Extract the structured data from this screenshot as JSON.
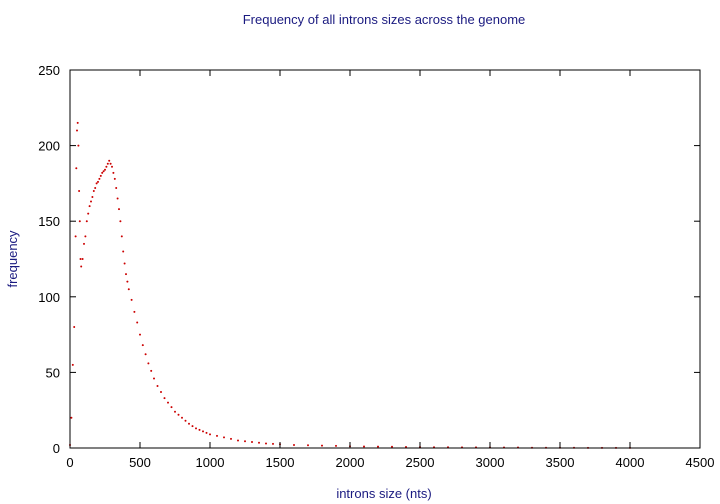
{
  "chart_data": {
    "type": "scatter",
    "title": "Frequency of all introns sizes across the genome",
    "xlabel": "introns size (nts)",
    "ylabel": "frequency",
    "xlim": [
      0,
      4500
    ],
    "ylim": [
      0,
      250
    ],
    "x_ticks": [
      0,
      500,
      1000,
      1500,
      2000,
      2500,
      3000,
      3500,
      4000,
      4500
    ],
    "y_ticks": [
      0,
      50,
      100,
      150,
      200,
      250
    ],
    "grid": false,
    "legend": "none",
    "point_color": "#cc0000",
    "series": [
      {
        "x": [
          0,
          10,
          20,
          30,
          40,
          45,
          50,
          55,
          60,
          65,
          70,
          75,
          80,
          90,
          100,
          110,
          120,
          130,
          140,
          150,
          160,
          170,
          180,
          190,
          200,
          210,
          220,
          230,
          240,
          250,
          260,
          270,
          280,
          290,
          300,
          310,
          320,
          330,
          340,
          350,
          360,
          370,
          380,
          390,
          400,
          410,
          420,
          440,
          460,
          480,
          500,
          520,
          540,
          560,
          580,
          600,
          625,
          650,
          675,
          700,
          725,
          750,
          775,
          800,
          825,
          850,
          875,
          900,
          925,
          950,
          975,
          1000,
          1050,
          1100,
          1150,
          1200,
          1250,
          1300,
          1350,
          1400,
          1450,
          1500,
          1600,
          1700,
          1800,
          1900,
          2000,
          2100,
          2200,
          2300,
          2400,
          2500,
          2600,
          2700,
          2800,
          2900,
          3000,
          3100,
          3200,
          3300,
          3400,
          3500,
          3600,
          3700,
          3800,
          3900,
          4000
        ],
        "y": [
          2,
          20,
          55,
          80,
          140,
          185,
          210,
          215,
          200,
          170,
          150,
          125,
          120,
          125,
          135,
          140,
          150,
          155,
          160,
          163,
          166,
          170,
          172,
          175,
          176,
          178,
          180,
          182,
          183,
          184,
          186,
          188,
          190,
          188,
          186,
          182,
          178,
          172,
          165,
          158,
          150,
          140,
          130,
          122,
          115,
          110,
          105,
          98,
          90,
          83,
          75,
          68,
          62,
          56,
          51,
          46,
          41,
          37,
          33,
          30,
          27,
          24,
          22,
          20,
          18,
          16,
          14.5,
          13,
          12,
          11,
          10,
          9,
          8,
          7,
          6,
          5,
          4.5,
          4,
          3.5,
          3,
          2.7,
          2.5,
          2,
          1.8,
          1.6,
          1.4,
          1.2,
          1,
          0.9,
          0.8,
          0.7,
          0.6,
          0.5,
          0.5,
          0.4,
          0.4,
          0.3,
          0.3,
          0.3,
          0.2,
          0.2,
          0.2,
          0.2,
          0.1,
          0.1,
          0.1,
          0.1
        ]
      }
    ]
  }
}
